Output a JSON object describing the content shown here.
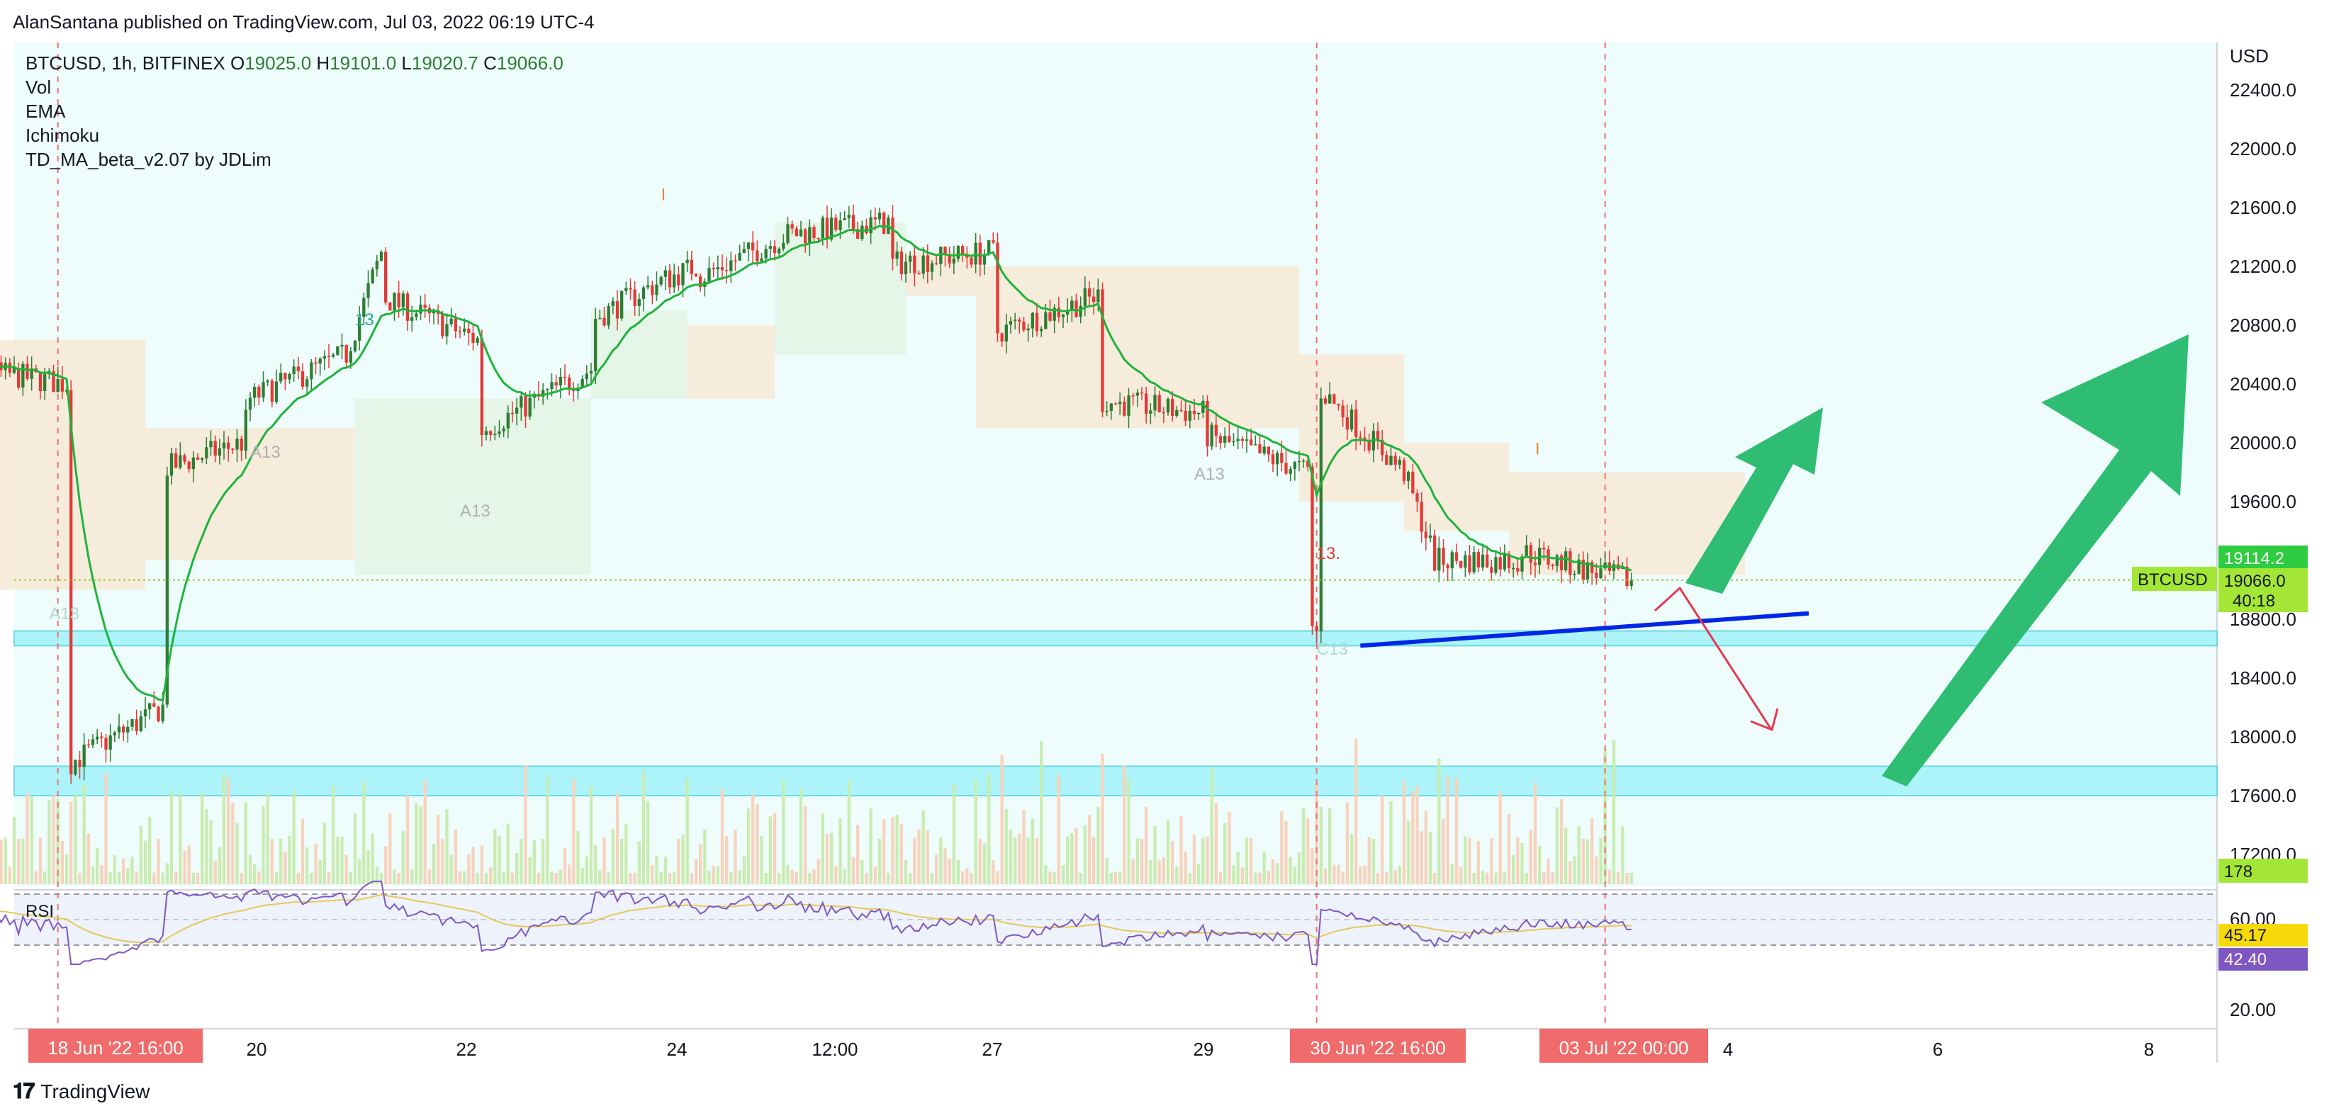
{
  "header": {
    "published": "AlanSantana published on TradingView.com, Jul 03, 2022 06:19 UTC-4"
  },
  "footer": {
    "brand": "TradingView"
  },
  "legend": {
    "symbol": "BTCUSD, 1h, BITFINEX",
    "o_label": "O",
    "o": "19025.0",
    "h_label": "H",
    "h": "19101.0",
    "l_label": "L",
    "l": "19020.7",
    "c_label": "C",
    "c": "19066.0",
    "indicators": [
      "Vol",
      "EMA",
      "Ichimoku",
      "TD_MA_beta_v2.07 by JDLim"
    ]
  },
  "price_axis": {
    "currency": "USD",
    "ticks": [
      "22400.0",
      "22000.0",
      "21600.0",
      "21200.0",
      "20800.0",
      "20400.0",
      "20000.0",
      "19600.0",
      "18800.0",
      "18400.0",
      "18000.0",
      "17600.0",
      "17200.0"
    ],
    "badges": {
      "ema": "19114.2",
      "symbol_label": "BTCUSD",
      "last": "19066.0",
      "countdown": "40:18",
      "volume": "178"
    }
  },
  "rsi": {
    "label": "RSI",
    "ticks": [
      "60.00",
      "20.00"
    ],
    "badges": {
      "ma": "45.17",
      "rsi": "42.40"
    }
  },
  "time_axis": {
    "ticks": [
      "20",
      "22",
      "24",
      "12:00",
      "27",
      "29",
      "4",
      "6",
      "8"
    ],
    "highlights": [
      "18 Jun '22   16:00",
      "30 Jun '22   16:00",
      "03 Jul '22   00:00"
    ]
  },
  "markers": [
    "13.",
    "13.",
    "A13",
    "A13",
    "A13",
    "A13",
    "C13",
    "C13",
    "13.",
    "I",
    "I"
  ],
  "colors": {
    "up": "#26a69a",
    "bull_candle": "#2e7d32",
    "bear_candle": "#e53935",
    "ema": "#1fb33a",
    "arrow_green": "#2ebd72",
    "trend_line": "#0026e6",
    "zone": "#a5f4f9",
    "rsi_line": "#7e57c2",
    "rsi_ma": "#e6c85a",
    "badge_red": "#f06b6b"
  },
  "chart_data": {
    "type": "candlestick",
    "symbol": "BTCUSD",
    "interval": "1h",
    "exchange": "BITFINEX",
    "ylim": [
      17000,
      22700
    ],
    "last_price": 19066.0,
    "ema_value": 19114.2,
    "support_zones": [
      [
        18620,
        18720
      ],
      [
        17600,
        17800
      ]
    ],
    "trend_line": [
      {
        "x": "30 Jun '22 16:00",
        "y": 18620
      },
      {
        "x": "04 Jul",
        "y": 18840
      }
    ],
    "path": [
      {
        "x": "17 Jun 20:00",
        "y": 20550
      },
      {
        "x": "18 Jun 08:00",
        "y": 20400
      },
      {
        "x": "18 Jun 12:00",
        "y": 19000
      },
      {
        "x": "18 Jun 16:00",
        "y": 18300
      },
      {
        "x": "18 Jun 22:00",
        "y": 17700
      },
      {
        "x": "19 Jun 06:00",
        "y": 18200
      },
      {
        "x": "19 Jun 14:00",
        "y": 19800
      },
      {
        "x": "20 Jun 00:00",
        "y": 20000
      },
      {
        "x": "20 Jun 12:00",
        "y": 20300
      },
      {
        "x": "21 Jun 00:00",
        "y": 20600
      },
      {
        "x": "21 Jun 08:00",
        "y": 21300
      },
      {
        "x": "21 Jun 12:00",
        "y": 21500
      },
      {
        "x": "21 Jun 20:00",
        "y": 21100
      },
      {
        "x": "22 Jun 06:00",
        "y": 20700
      },
      {
        "x": "22 Jun 14:00",
        "y": 20200
      },
      {
        "x": "22 Jun 22:00",
        "y": 20000
      },
      {
        "x": "23 Jun 08:00",
        "y": 20500
      },
      {
        "x": "23 Jun 16:00",
        "y": 20800
      },
      {
        "x": "24 Jun 00:00",
        "y": 21100
      },
      {
        "x": "24 Jun 08:00",
        "y": 21200
      },
      {
        "x": "24 Jun 20:00",
        "y": 21000
      },
      {
        "x": "25 Jun 04:00",
        "y": 21400
      },
      {
        "x": "25 Jun 12:00",
        "y": 21200
      },
      {
        "x": "25 Jun 20:00",
        "y": 21400
      },
      {
        "x": "26 Jun 04:00",
        "y": 21500
      },
      {
        "x": "26 Jun 12:00",
        "y": 21500
      },
      {
        "x": "26 Jun 20:00",
        "y": 21200
      },
      {
        "x": "27 Jun 04:00",
        "y": 21300
      },
      {
        "x": "27 Jun 12:00",
        "y": 20800
      },
      {
        "x": "27 Jun 20:00",
        "y": 20700
      },
      {
        "x": "28 Jun 04:00",
        "y": 21000
      },
      {
        "x": "28 Jun 12:00",
        "y": 20700
      },
      {
        "x": "28 Jun 20:00",
        "y": 20300
      },
      {
        "x": "29 Jun 04:00",
        "y": 20200
      },
      {
        "x": "29 Jun 12:00",
        "y": 20000
      },
      {
        "x": "29 Jun 20:00",
        "y": 20100
      },
      {
        "x": "30 Jun 04:00",
        "y": 19800
      },
      {
        "x": "30 Jun 10:00",
        "y": 19000
      },
      {
        "x": "30 Jun 16:00",
        "y": 18700
      },
      {
        "x": "30 Jun 20:00",
        "y": 19500
      },
      {
        "x": "30 Jun 22:00",
        "y": 20500
      },
      {
        "x": "01 Jul 02:00",
        "y": 19800
      },
      {
        "x": "01 Jul 08:00",
        "y": 19300
      },
      {
        "x": "01 Jul 14:00",
        "y": 19400
      },
      {
        "x": "01 Jul 20:00",
        "y": 19200
      },
      {
        "x": "02 Jul 04:00",
        "y": 19200
      },
      {
        "x": "02 Jul 12:00",
        "y": 19200
      },
      {
        "x": "02 Jul 20:00",
        "y": 19300
      },
      {
        "x": "03 Jul 00:00",
        "y": 19100
      },
      {
        "x": "03 Jul 06:00",
        "y": 19066
      }
    ],
    "scenarios": [
      {
        "type": "arrow",
        "color": "green",
        "from": {
          "x": "03 Jul 08:00",
          "y": 19050
        },
        "to": {
          "x": "04 Jul 04:00",
          "y": 20300
        }
      },
      {
        "type": "arrow",
        "color": "red",
        "from": {
          "x": "03 Jul 08:00",
          "y": 19020
        },
        "to": {
          "x": "04 Jul 02:00",
          "y": 18050
        }
      },
      {
        "type": "arrow",
        "color": "green",
        "from": {
          "x": "05 Jul 12:00",
          "y": 17760
        },
        "to": {
          "x": "07 Jul 12:00",
          "y": 20740
        }
      }
    ],
    "rsi_levels": [
      70,
      30
    ],
    "rsi_last": 42.4,
    "rsi_ma_last": 45.17
  }
}
